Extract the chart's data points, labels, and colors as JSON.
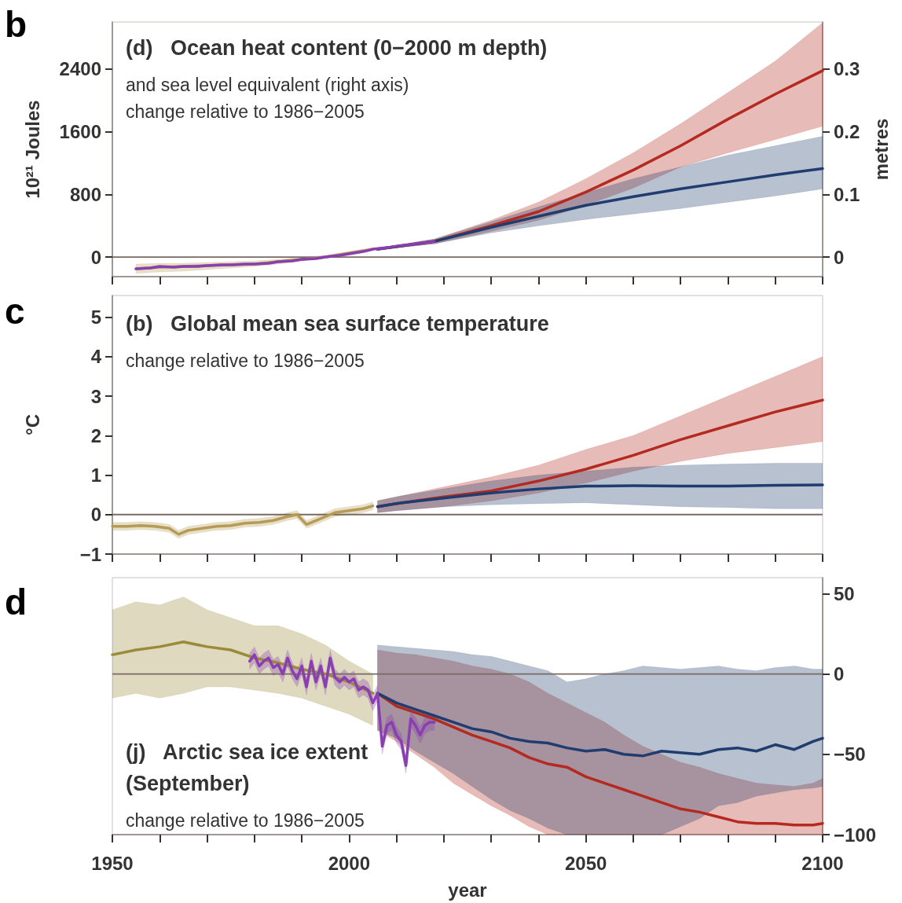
{
  "chart_data": [
    {
      "type": "line",
      "title": "(d)   Ocean heat content (0−2000 m depth)",
      "subtitle": "and sea level equivalent (right axis)\nchange relative to 1986−2005",
      "ylabel": "10²¹ Joules",
      "y2label": "metres",
      "annotations": [
        "b"
      ],
      "xlim": [
        1950,
        2100
      ],
      "xticks": [
        1950,
        {
          "value": 1960,
          "label": null
        },
        {
          "value": 1970,
          "label": null
        },
        {
          "value": 1980,
          "label": null
        },
        {
          "value": 1990,
          "label": null
        },
        2000,
        {
          "value": 2010,
          "label": null
        },
        {
          "value": 2020,
          "label": null
        },
        {
          "value": 2030,
          "label": null
        },
        {
          "value": 2040,
          "label": null
        },
        2050,
        {
          "value": 2060,
          "label": null
        },
        {
          "value": 2070,
          "label": null
        },
        {
          "value": 2080,
          "label": null
        },
        {
          "value": 2090,
          "label": null
        },
        2100
      ],
      "ylim": [
        -250,
        3000
      ],
      "yticks": [
        0,
        800,
        1600,
        2400
      ],
      "y2lim": [
        -0.03125,
        0.375
      ],
      "y2ticks": [
        0,
        0.1,
        0.2,
        0.3
      ],
      "tick_labels": "y",
      "marker": "none",
      "line_style": "solid",
      "ref_lines": [
        {
          "axis": "y",
          "value": 0,
          "color": "#7a6a64"
        }
      ],
      "series": [
        {
          "color": "#b59b55",
          "x": [
            1955,
            1960,
            1965,
            1970,
            1975,
            1980,
            1985,
            1990,
            1995,
            2000,
            2005
          ],
          "values": [
            -150,
            -130,
            -120,
            -110,
            -100,
            -90,
            -60,
            -30,
            0,
            50,
            100
          ],
          "lower": [
            -210,
            -190,
            -180,
            -160,
            -140,
            -120,
            -90,
            -50,
            -20,
            30,
            80
          ],
          "upper": [
            -90,
            -80,
            -80,
            -70,
            -60,
            -50,
            -30,
            0,
            20,
            70,
            120
          ]
        },
        {
          "color": "#b52a20",
          "x": [
            2006,
            2018,
            2030,
            2040,
            2050,
            2060,
            2070,
            2080,
            2090,
            2100
          ],
          "values": [
            100,
            200,
            400,
            580,
            830,
            1110,
            1420,
            1760,
            2080,
            2380
          ],
          "lower": [
            90,
            170,
            330,
            470,
            660,
            880,
            1150,
            1330,
            1500,
            1670
          ],
          "upper": [
            110,
            230,
            470,
            700,
            1000,
            1330,
            1700,
            2100,
            2500,
            2990
          ]
        },
        {
          "color": "#1f3d6e",
          "x": [
            2006,
            2018,
            2030,
            2040,
            2050,
            2060,
            2070,
            2080,
            2090,
            2100
          ],
          "values": [
            100,
            200,
            380,
            520,
            660,
            770,
            870,
            960,
            1050,
            1130
          ],
          "lower": [
            90,
            170,
            310,
            400,
            480,
            550,
            620,
            700,
            780,
            870
          ],
          "upper": [
            110,
            230,
            450,
            640,
            820,
            1000,
            1150,
            1300,
            1420,
            1540
          ]
        },
        {
          "color": "#8a3fb0",
          "x": [
            1955,
            1958,
            1960,
            1963,
            1965,
            1968,
            1970,
            1973,
            1975,
            1978,
            1980,
            1983,
            1985,
            1988,
            1990,
            1993,
            1995,
            1998,
            2000,
            2003,
            2005,
            2008,
            2010,
            2013,
            2015,
            2018
          ],
          "values": [
            -150,
            -140,
            -120,
            -130,
            -120,
            -120,
            -110,
            -100,
            -100,
            -90,
            -90,
            -80,
            -60,
            -50,
            -30,
            -20,
            0,
            20,
            40,
            70,
            100,
            120,
            140,
            160,
            180,
            200
          ]
        }
      ]
    },
    {
      "type": "line",
      "title": "(b)   Global mean sea surface temperature",
      "subtitle": "change relative to 1986−2005",
      "ylabel": "°C",
      "annotations": [
        "c"
      ],
      "xlim": [
        1950,
        2100
      ],
      "xticks": [
        1950,
        {
          "value": 1960,
          "label": null
        },
        {
          "value": 1970,
          "label": null
        },
        {
          "value": 1980,
          "label": null
        },
        {
          "value": 1990,
          "label": null
        },
        2000,
        {
          "value": 2010,
          "label": null
        },
        {
          "value": 2020,
          "label": null
        },
        {
          "value": 2030,
          "label": null
        },
        {
          "value": 2040,
          "label": null
        },
        2050,
        {
          "value": 2060,
          "label": null
        },
        {
          "value": 2070,
          "label": null
        },
        {
          "value": 2080,
          "label": null
        },
        {
          "value": 2090,
          "label": null
        },
        2100
      ],
      "ylim": [
        -1,
        5.55
      ],
      "yticks": [
        {
          "value": -1,
          "label": "−1"
        },
        0,
        1,
        2,
        3,
        4,
        5
      ],
      "tick_labels": "y",
      "marker": "none",
      "line_style": "solid",
      "ref_lines": [
        {
          "axis": "y",
          "value": 0,
          "color": "#7a6a64"
        }
      ],
      "series": [
        {
          "color": "#b59b55",
          "x": [
            1950,
            1953,
            1956,
            1959,
            1962,
            1964,
            1966,
            1969,
            1972,
            1975,
            1978,
            1981,
            1984,
            1987,
            1989,
            1991,
            1994,
            1997,
            2000,
            2003,
            2005
          ],
          "values": [
            -0.3,
            -0.3,
            -0.28,
            -0.3,
            -0.35,
            -0.5,
            -0.4,
            -0.35,
            -0.3,
            -0.28,
            -0.22,
            -0.2,
            -0.15,
            -0.05,
            0.0,
            -0.25,
            -0.1,
            0.05,
            0.1,
            0.15,
            0.22
          ],
          "lower": [
            -0.4,
            -0.4,
            -0.38,
            -0.4,
            -0.45,
            -0.6,
            -0.5,
            -0.45,
            -0.4,
            -0.38,
            -0.32,
            -0.3,
            -0.25,
            -0.15,
            -0.1,
            -0.35,
            -0.2,
            -0.05,
            0.0,
            0.05,
            0.12
          ],
          "upper": [
            -0.2,
            -0.2,
            -0.18,
            -0.2,
            -0.25,
            -0.4,
            -0.3,
            -0.25,
            -0.2,
            -0.18,
            -0.12,
            -0.1,
            -0.05,
            0.05,
            0.1,
            -0.15,
            0.0,
            0.15,
            0.2,
            0.25,
            0.32
          ]
        },
        {
          "color": "#b52a20",
          "x": [
            2006,
            2010,
            2020,
            2030,
            2040,
            2050,
            2060,
            2070,
            2080,
            2090,
            2100
          ],
          "values": [
            0.2,
            0.28,
            0.45,
            0.6,
            0.85,
            1.15,
            1.5,
            1.9,
            2.25,
            2.6,
            2.9
          ],
          "lower": [
            0.05,
            0.1,
            0.2,
            0.35,
            0.55,
            0.8,
            1.1,
            1.35,
            1.55,
            1.7,
            1.85
          ],
          "upper": [
            0.35,
            0.45,
            0.7,
            0.95,
            1.25,
            1.65,
            2.0,
            2.5,
            3.0,
            3.5,
            4.0
          ]
        },
        {
          "color": "#1f3d6e",
          "x": [
            2006,
            2010,
            2020,
            2030,
            2040,
            2050,
            2060,
            2070,
            2080,
            2090,
            2100
          ],
          "values": [
            0.2,
            0.28,
            0.42,
            0.55,
            0.65,
            0.72,
            0.73,
            0.72,
            0.72,
            0.74,
            0.75
          ],
          "lower": [
            0.05,
            0.1,
            0.2,
            0.25,
            0.28,
            0.3,
            0.25,
            0.2,
            0.18,
            0.15,
            0.15
          ],
          "upper": [
            0.35,
            0.45,
            0.65,
            0.85,
            1.0,
            1.1,
            1.2,
            1.25,
            1.28,
            1.3,
            1.3
          ]
        }
      ]
    },
    {
      "type": "line",
      "title": "(j)   Arctic sea ice extent\n(September)",
      "subtitle": "change relative to 1986−2005",
      "xlabel": "year",
      "annotations": [
        "d"
      ],
      "xlim": [
        1950,
        2100
      ],
      "xticks": [
        1950,
        {
          "value": 1960,
          "label": null
        },
        {
          "value": 1970,
          "label": null
        },
        {
          "value": 1980,
          "label": null
        },
        {
          "value": 1990,
          "label": null
        },
        2000,
        {
          "value": 2010,
          "label": null
        },
        {
          "value": 2020,
          "label": null
        },
        {
          "value": 2030,
          "label": null
        },
        {
          "value": 2040,
          "label": null
        },
        2050,
        {
          "value": 2060,
          "label": null
        },
        {
          "value": 2070,
          "label": null
        },
        {
          "value": 2080,
          "label": null
        },
        {
          "value": 2090,
          "label": null
        },
        2100
      ],
      "ylim": [
        -100,
        60
      ],
      "yticks": [
        {
          "value": -100,
          "label": "−100"
        },
        {
          "value": -50,
          "label": "−50"
        },
        0,
        50
      ],
      "marker": "none",
      "line_style": "solid",
      "ref_lines": [
        {
          "axis": "y",
          "value": 0,
          "color": "#7a6a64"
        }
      ],
      "series": [
        {
          "color": "#9a8a3a",
          "x": [
            1950,
            1955,
            1960,
            1965,
            1970,
            1975,
            1980,
            1985,
            1990,
            1995,
            2000,
            2005
          ],
          "values": [
            12,
            15,
            17,
            20,
            17,
            15,
            10,
            7,
            3,
            0,
            -5,
            -12
          ],
          "lower": [
            -15,
            -12,
            -15,
            -12,
            -8,
            -8,
            -10,
            -12,
            -15,
            -20,
            -25,
            -32
          ],
          "upper": [
            40,
            45,
            43,
            48,
            40,
            35,
            30,
            30,
            25,
            18,
            8,
            0
          ]
        },
        {
          "color": "#b52a20",
          "x": [
            2006,
            2010,
            2014,
            2018,
            2022,
            2026,
            2030,
            2034,
            2038,
            2042,
            2046,
            2050,
            2054,
            2058,
            2062,
            2066,
            2070,
            2074,
            2078,
            2082,
            2086,
            2090,
            2094,
            2098,
            2100
          ],
          "values": [
            -12,
            -20,
            -24,
            -28,
            -33,
            -38,
            -42,
            -46,
            -52,
            -56,
            -58,
            -64,
            -68,
            -72,
            -76,
            -80,
            -84,
            -86,
            -89,
            -92,
            -93,
            -93,
            -94,
            -94,
            -93
          ],
          "upper": [
            15,
            13,
            12,
            10,
            8,
            5,
            3,
            0,
            -5,
            -12,
            -18,
            -24,
            -30,
            -38,
            -45,
            -50,
            -55,
            -58,
            -62,
            -65,
            -68,
            -69,
            -70,
            -68,
            -65
          ],
          "lower": [
            -35,
            -42,
            -50,
            -58,
            -68,
            -75,
            -82,
            -88,
            -95,
            -100,
            -100,
            -100,
            -100,
            -100,
            -100,
            -100,
            -100,
            -100,
            -100,
            -100,
            -100,
            -100,
            -100,
            -100,
            -100
          ]
        },
        {
          "color": "#1f3d6e",
          "x": [
            2006,
            2010,
            2014,
            2018,
            2022,
            2026,
            2030,
            2034,
            2038,
            2042,
            2046,
            2050,
            2054,
            2058,
            2062,
            2066,
            2070,
            2074,
            2078,
            2082,
            2086,
            2090,
            2094,
            2098,
            2100
          ],
          "values": [
            -12,
            -18,
            -22,
            -26,
            -30,
            -34,
            -36,
            -40,
            -42,
            -43,
            -46,
            -48,
            -47,
            -50,
            -51,
            -48,
            -49,
            -50,
            -47,
            -46,
            -48,
            -44,
            -47,
            -42,
            -40
          ],
          "upper": [
            18,
            17,
            16,
            15,
            14,
            12,
            11,
            8,
            5,
            2,
            -5,
            -3,
            0,
            2,
            5,
            4,
            3,
            4,
            5,
            3,
            2,
            4,
            5,
            3,
            3
          ],
          "lower": [
            -35,
            -40,
            -48,
            -55,
            -62,
            -70,
            -78,
            -85,
            -90,
            -96,
            -100,
            -100,
            -100,
            -100,
            -100,
            -100,
            -95,
            -90,
            -82,
            -80,
            -76,
            -74,
            -72,
            -71,
            -70
          ]
        },
        {
          "color": "#8a3fb0",
          "x": [
            1979,
            1980,
            1981,
            1982,
            1983,
            1984,
            1985,
            1986,
            1987,
            1988,
            1989,
            1990,
            1991,
            1992,
            1993,
            1994,
            1995,
            1996,
            1997,
            1998,
            1999,
            2000,
            2001,
            2002,
            2003,
            2004,
            2005,
            2006,
            2007,
            2008,
            2009,
            2010,
            2011,
            2012,
            2013,
            2014,
            2015,
            2016,
            2017,
            2018
          ],
          "values": [
            8,
            12,
            5,
            8,
            10,
            4,
            6,
            0,
            10,
            2,
            -3,
            5,
            -8,
            8,
            -5,
            5,
            -8,
            10,
            -2,
            -5,
            -2,
            -5,
            -3,
            -10,
            -8,
            -10,
            -18,
            -12,
            -45,
            -32,
            -30,
            -38,
            -42,
            -57,
            -28,
            -32,
            -38,
            -32,
            -30,
            -30
          ],
          "lower": [
            3,
            7,
            0,
            3,
            5,
            -1,
            1,
            -5,
            5,
            -3,
            -8,
            0,
            -13,
            3,
            -10,
            0,
            -13,
            5,
            -7,
            -10,
            -7,
            -10,
            -8,
            -15,
            -13,
            -15,
            -23,
            -17,
            -50,
            -37,
            -35,
            -43,
            -47,
            -62,
            -33,
            -37,
            -43,
            -37,
            -35,
            -35
          ],
          "upper": [
            13,
            17,
            10,
            13,
            15,
            9,
            11,
            5,
            15,
            7,
            2,
            10,
            -3,
            13,
            0,
            10,
            -3,
            15,
            3,
            0,
            3,
            0,
            2,
            -5,
            -3,
            -5,
            -13,
            -7,
            -40,
            -27,
            -25,
            -33,
            -37,
            -52,
            -23,
            -27,
            -33,
            -27,
            -25,
            -25
          ]
        }
      ]
    }
  ]
}
